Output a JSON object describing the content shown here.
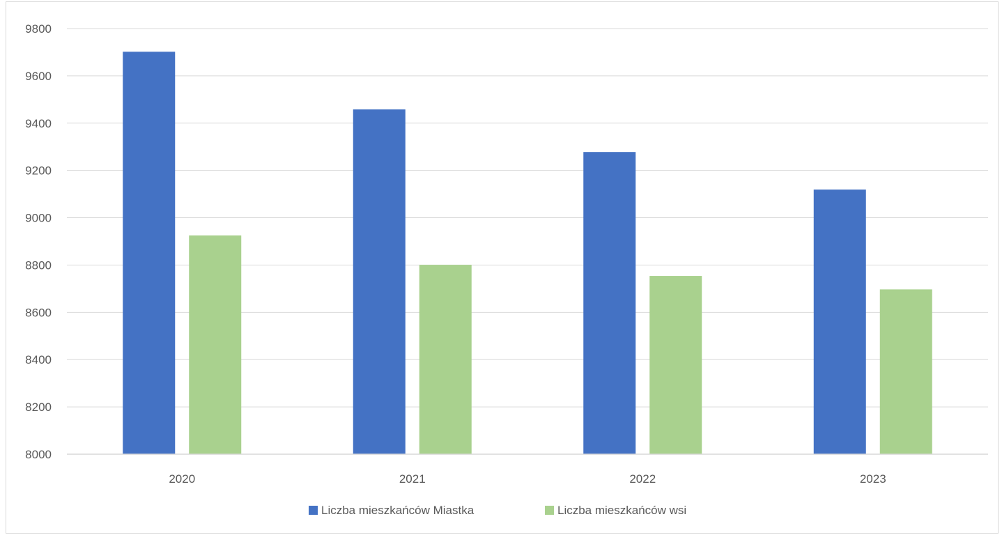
{
  "chart_data": {
    "type": "bar",
    "categories": [
      "2020",
      "2021",
      "2022",
      "2023"
    ],
    "series": [
      {
        "name": "Liczba mieszkańców Miastka",
        "values": [
          9702,
          9458,
          9278,
          9119
        ],
        "color": "#4472c4"
      },
      {
        "name": "Liczba mieszkańców wsi",
        "values": [
          8925,
          8801,
          8754,
          8697
        ],
        "color": "#a9d18e"
      }
    ],
    "ylim": [
      8000,
      9800
    ],
    "yticks": [
      8000,
      8200,
      8400,
      8600,
      8800,
      9000,
      9200,
      9400,
      9600,
      9800
    ],
    "grid": true,
    "legend_position": "bottom",
    "title": "",
    "xlabel": "",
    "ylabel": ""
  }
}
